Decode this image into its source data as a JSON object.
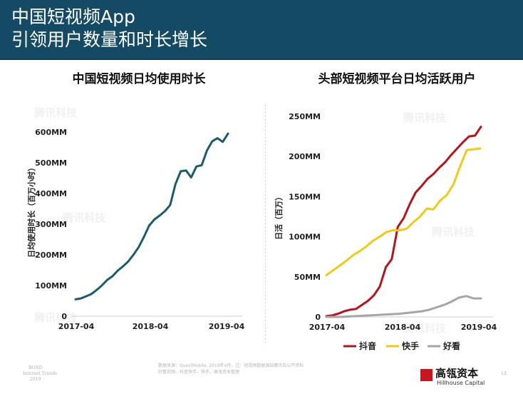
{
  "header": {
    "title_line1": "中国短视频App",
    "title_line2": "引领用户数量和时长增长"
  },
  "chart_data": [
    {
      "type": "line",
      "title": "中国短视频日均使用时长",
      "xlabel": "",
      "ylabel": "日均使用时长（百万小时）",
      "x_ticks": [
        "2017-04",
        "2018-04",
        "2019-04"
      ],
      "y_ticks": [
        "0",
        "100MM",
        "200MM",
        "300MM",
        "400MM",
        "500MM",
        "600MM"
      ],
      "ylim": [
        0,
        600
      ],
      "grid": false,
      "series": [
        {
          "color": "#1b5b6e",
          "values": [
            55,
            58,
            65,
            72,
            85,
            100,
            118,
            130,
            148,
            162,
            178,
            200,
            225,
            258,
            295,
            315,
            328,
            342,
            362,
            430,
            472,
            475,
            452,
            488,
            492,
            540,
            570,
            580,
            568,
            595
          ]
        }
      ]
    },
    {
      "type": "line",
      "title": "头部短视频平台日均活跃用户",
      "xlabel": "",
      "ylabel": "日活（百万）",
      "x_ticks": [
        "2017-04",
        "2018-04",
        "2019-04"
      ],
      "y_ticks": [
        "0",
        "50MM",
        "100MM",
        "150MM",
        "200MM",
        "250MM"
      ],
      "ylim": [
        0,
        250
      ],
      "grid": false,
      "legend_position": "bottom",
      "series": [
        {
          "name": "抖音",
          "color": "#b3151b",
          "values": [
            1,
            2,
            4,
            7,
            9,
            10,
            15,
            20,
            27,
            38,
            62,
            72,
            112,
            123,
            140,
            155,
            163,
            172,
            178,
            186,
            193,
            202,
            210,
            218,
            225,
            226,
            237
          ]
        },
        {
          "name": "快手",
          "color": "#f2c918",
          "values": [
            52,
            58,
            64,
            70,
            77,
            82,
            88,
            95,
            100,
            106,
            108,
            108,
            110,
            118,
            125,
            135,
            134,
            145,
            152,
            165,
            188,
            208,
            209,
            210
          ]
        },
        {
          "name": "好看",
          "color": "#a6a6a6",
          "values": [
            0,
            0,
            0,
            0.5,
            1,
            1.5,
            2,
            2.5,
            3,
            3.5,
            4,
            5,
            6,
            7,
            9,
            12,
            15,
            19,
            24,
            26,
            23,
            23
          ]
        }
      ]
    }
  ],
  "watermark": "腾讯科技",
  "footer": {
    "source_line1": "数据来源：QuestMobile, 2019年4月，注：短视频数据源自腾讯及公开资料",
    "source_line2": "好看视频、抖音快手、快手、高瓴资本整理",
    "bond_line1": "BOND",
    "bond_line2": "Internet Trends",
    "bond_line3": "2019",
    "logo_cn": "高瓴资本",
    "logo_en": "Hillhouse Capital",
    "page_number": "13"
  }
}
